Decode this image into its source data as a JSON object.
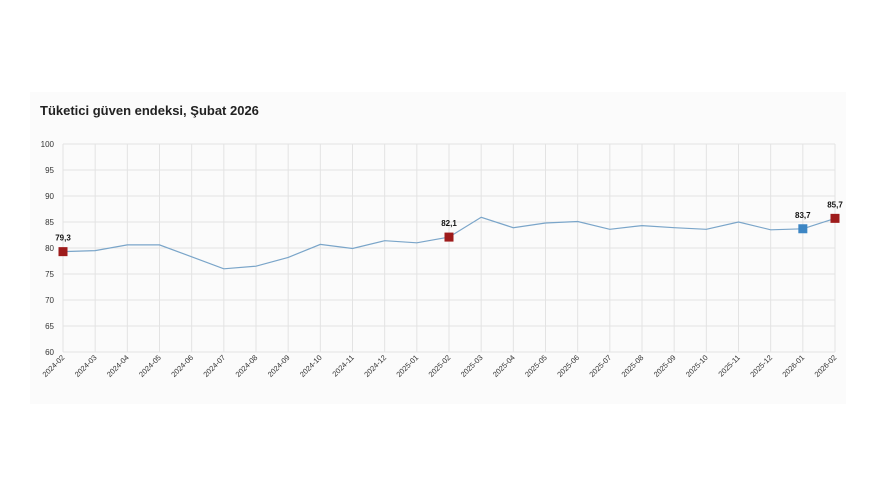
{
  "colors": {
    "line": "#7aa5c9",
    "highlight_red": "#9e1b1b",
    "highlight_blue": "#3d86c4",
    "grid": "#e3e3e3",
    "card": "#fbfbfb"
  },
  "chart_data": {
    "type": "line",
    "title": "Tüketici güven endeksi, Şubat 2026",
    "xlabel": "",
    "ylabel": "",
    "ylim": [
      60,
      100
    ],
    "yticks": [
      60,
      65,
      70,
      75,
      80,
      85,
      90,
      95,
      100
    ],
    "grid": true,
    "categories": [
      "2024-02",
      "2024-03",
      "2024-04",
      "2024-05",
      "2024-06",
      "2024-07",
      "2024-08",
      "2024-09",
      "2024-10",
      "2024-11",
      "2024-12",
      "2025-01",
      "2025-02",
      "2025-03",
      "2025-04",
      "2025-05",
      "2025-06",
      "2025-07",
      "2025-08",
      "2025-09",
      "2025-10",
      "2025-11",
      "2025-12",
      "2026-01",
      "2026-02"
    ],
    "values": [
      79.3,
      79.5,
      80.6,
      80.6,
      78.3,
      76.0,
      76.5,
      78.2,
      80.7,
      79.9,
      81.4,
      81.0,
      82.1,
      85.9,
      83.9,
      84.8,
      85.1,
      83.6,
      84.3,
      83.9,
      83.6,
      85.0,
      83.5,
      83.7,
      85.7
    ],
    "highlights": [
      {
        "category": "2024-02",
        "label": "79,3",
        "color": "red"
      },
      {
        "category": "2025-02",
        "label": "82,1",
        "color": "red"
      },
      {
        "category": "2026-01",
        "label": "83,7",
        "color": "blue"
      },
      {
        "category": "2026-02",
        "label": "85,7",
        "color": "red"
      }
    ]
  }
}
